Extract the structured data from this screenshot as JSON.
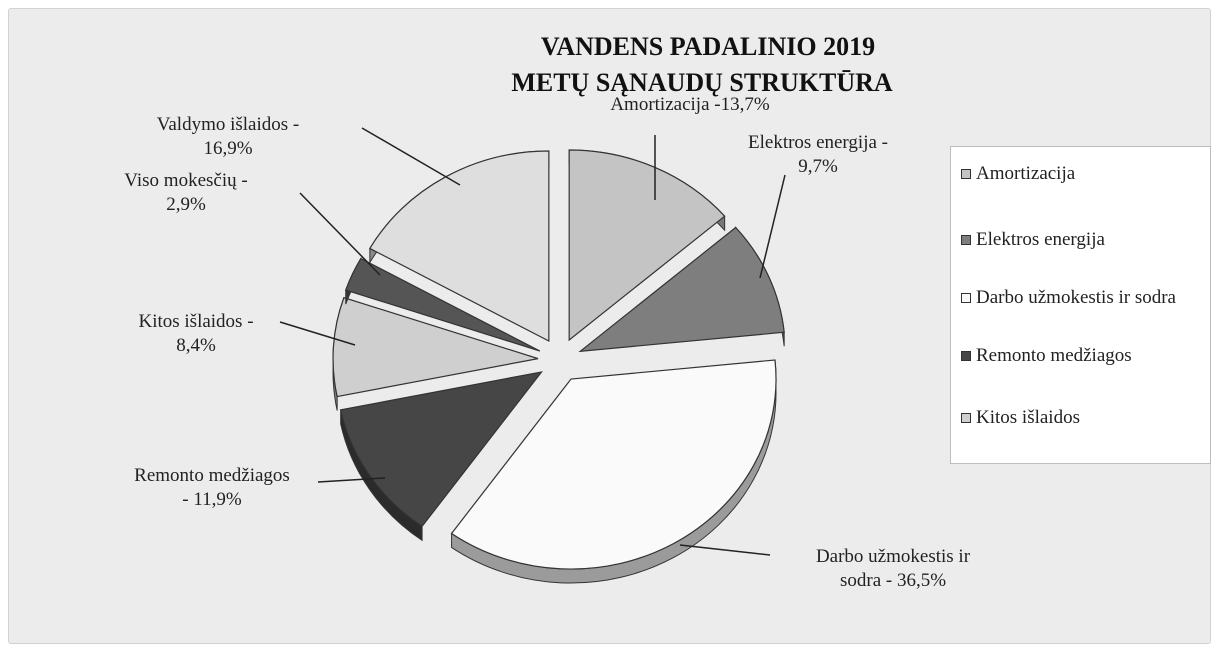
{
  "chart_data": {
    "type": "pie",
    "title": [
      "VANDENS PADALINIO 2019",
      "METŲ SĄNAUDŲ STRUKTŪRA"
    ],
    "slices": [
      {
        "key": "amortizacija",
        "name": "Amortizacija",
        "value": 13.7,
        "label": [
          "Amortizacija -13,7%"
        ],
        "color": "#c4c4c4"
      },
      {
        "key": "elektros",
        "name": "Elektros energija",
        "value": 9.7,
        "label": [
          "Elektros energija -",
          "9,7%"
        ],
        "color": "#7e7e7e"
      },
      {
        "key": "darbo",
        "name": "Darbo užmokestis ir sodra",
        "value": 36.5,
        "label": [
          "Darbo užmokestis ir",
          "sodra - 36,5%"
        ],
        "color": "#fafafa"
      },
      {
        "key": "remonto",
        "name": "Remonto medžiagos",
        "value": 11.9,
        "label": [
          "Remonto medžiagos",
          "- 11,9%"
        ],
        "color": "#464646"
      },
      {
        "key": "kitos",
        "name": "Kitos išlaidos",
        "value": 8.4,
        "label": [
          "Kitos išlaidos -",
          "8,4%"
        ],
        "color": "#cfcfcf"
      },
      {
        "key": "viso",
        "name": "Viso mokesčių",
        "value": 2.9,
        "label": [
          "Viso mokesčių -",
          "2,9%"
        ],
        "color": "#555555"
      },
      {
        "key": "valdymo",
        "name": "Valdymo išlaidos",
        "value": 16.9,
        "label": [
          "Valdymo išlaidos -",
          "16,9%"
        ],
        "color": "#dedede"
      }
    ],
    "legend": {
      "placement": "right",
      "items": [
        {
          "text": "Amortizacija",
          "color": "#c4c4c4"
        },
        {
          "text": "Elektros energija",
          "color": "#7e7e7e"
        },
        {
          "text": "Darbo užmokestis ir sodra",
          "color": "#fafafa"
        },
        {
          "text": "Remonto medžiagos",
          "color": "#464646"
        },
        {
          "text": "Kitos išlaidos",
          "color": "#cfcfcf"
        }
      ]
    }
  }
}
